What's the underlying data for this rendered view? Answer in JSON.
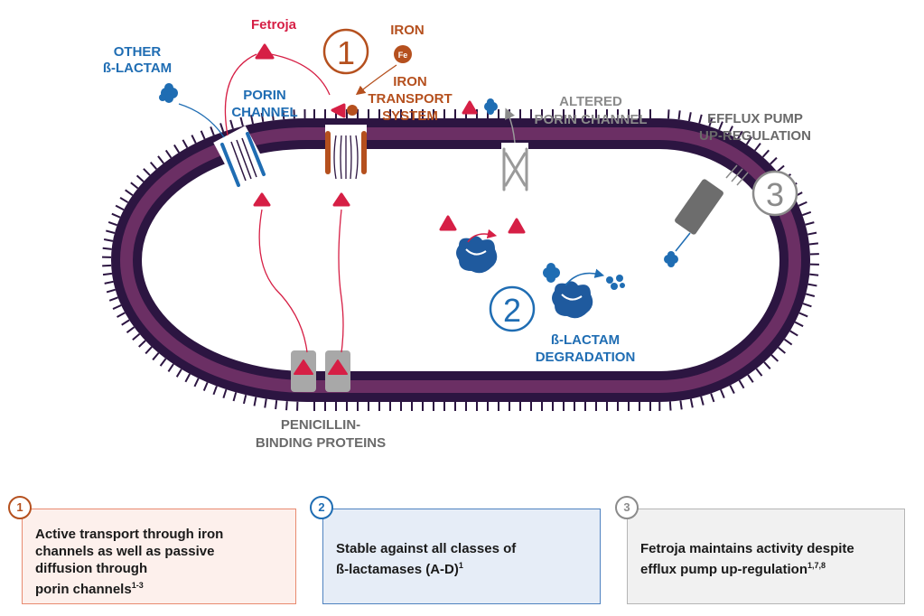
{
  "colors": {
    "membrane_outer": "#2c1541",
    "membrane_inner": "#6b2f64",
    "fetroja_red": "#d61f45",
    "iron_orange": "#b5501e",
    "blue": "#1f6db3",
    "gray": "#8b8b8b",
    "box1_bg": "#fdf0ec",
    "box2_bg": "#e6edf7",
    "box3_bg": "#f1f1f1"
  },
  "diagram": {
    "fetroja": "Fetroja",
    "other_b_lactam": [
      "OTHER",
      "ß-LACTAM"
    ],
    "porin_channel": [
      "PORIN",
      "CHANNEL"
    ],
    "step1_num": "1",
    "iron": "IRON",
    "fe": "Fe",
    "iron_transport_system": [
      "IRON",
      "TRANSPORT",
      "SYSTEM"
    ],
    "altered_porin_channel": [
      "ALTERED",
      "PORIN CHANNEL"
    ],
    "efflux_pump": [
      "EFFLUX PUMP",
      "UP-REGULATION"
    ],
    "step3_num": "3",
    "step2_num": "2",
    "b_lactam_degradation": [
      "ß-LACTAM",
      "DEGRADATION"
    ],
    "penicillin_binding_proteins": [
      "PENICILLIN-",
      "BINDING PROTEINS"
    ]
  },
  "boxes": [
    {
      "num": "1",
      "lines": [
        "Active transport through iron",
        "channels as well as passive",
        "diffusion through",
        "porin channels"
      ],
      "sup": "1-3"
    },
    {
      "num": "2",
      "lines": [
        "Stable against all classes of",
        "ß-lactamases (A-D)"
      ],
      "sup": "1"
    },
    {
      "num": "3",
      "lines": [
        "Fetroja maintains activity despite",
        "efflux pump up-regulation"
      ],
      "sup": "1,7,8"
    }
  ]
}
